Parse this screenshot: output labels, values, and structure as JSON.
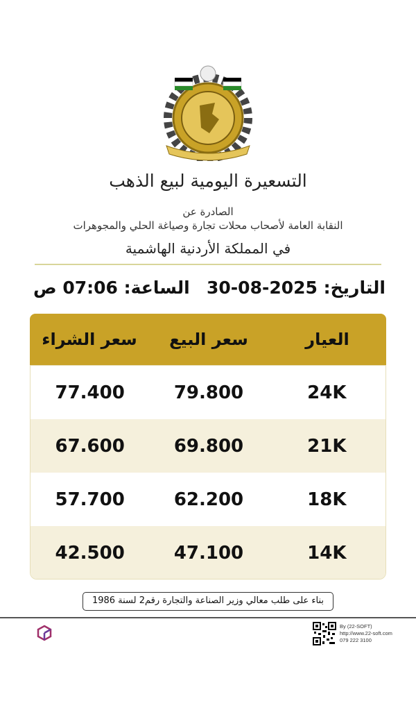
{
  "header": {
    "title": "التسعيرة اليومية لبيع الذهب",
    "issued_by": "الصادرة عن",
    "organization": "النقابة العامة لأصحاب محلات تجارة وصياغة الحلي والمجوهرات",
    "country": "في المملكة الأردنية الهاشمية"
  },
  "datetime": {
    "date_label": "التاريخ:",
    "date": "30-08-2025",
    "time_label": "الساعة:",
    "time": "07:06 ص"
  },
  "table": {
    "headers": [
      "العيار",
      "سعر البيع",
      "سعر الشراء"
    ],
    "rows": [
      {
        "karat": "24K",
        "sell": "79.800",
        "buy": "77.400"
      },
      {
        "karat": "21K",
        "sell": "69.800",
        "buy": "67.600"
      },
      {
        "karat": "18K",
        "sell": "62.200",
        "buy": "57.700"
      },
      {
        "karat": "14K",
        "sell": "47.100",
        "buy": "42.500"
      }
    ]
  },
  "note": "بناء على طلب معالي وزير الصناعة والتجارة رقم2 لسنة 1986",
  "footer": {
    "by": "By (22-SOFT)",
    "url": "http://www.22-soft.com",
    "phone": "079 222 3100",
    "logo_text": "22-soft"
  },
  "colors": {
    "header_gold": "#c9a227",
    "alt_row": "#f5f0dc"
  }
}
